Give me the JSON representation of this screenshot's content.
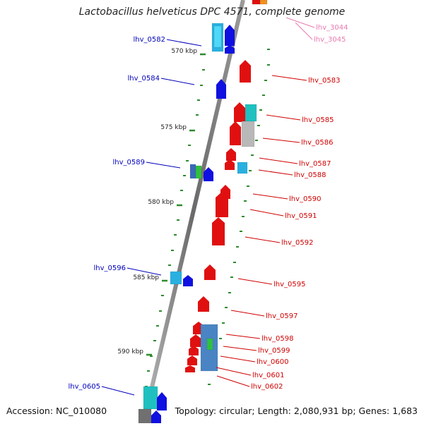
{
  "title": "Lactobacillus helveticus DPC 4571, complete genome",
  "footer": {
    "accession": "Accession: NC_010080",
    "summary": "Topology: circular; Length: 2,080,931 bp; Genes: 1,683"
  },
  "colors": {
    "reverse_label": "#0000bb",
    "forward_label": "#d00000",
    "other_label": "#e87ab0",
    "backbone": "#777777",
    "tick": "#2e8b2e"
  },
  "ruler_labels": [
    "570 kbp",
    "575 kbp",
    "580 kbp",
    "585 kbp",
    "590 kbp"
  ],
  "gene_labels_left": [
    "lhv_0582",
    "lhv_0584",
    "lhv_0589",
    "lhv_0596",
    "lhv_0605"
  ],
  "gene_labels_right": [
    "lhv_0583",
    "lhv_0585",
    "lhv_0586",
    "lhv_0587",
    "lhv_0588",
    "lhv_0590",
    "lhv_0591",
    "lhv_0592",
    "lhv_0595",
    "lhv_0597",
    "lhv_0598",
    "lhv_0599",
    "lhv_0600",
    "lhv_0601",
    "lhv_0602"
  ],
  "gene_labels_other": [
    "lhv_3044",
    "lhv_3045"
  ]
}
